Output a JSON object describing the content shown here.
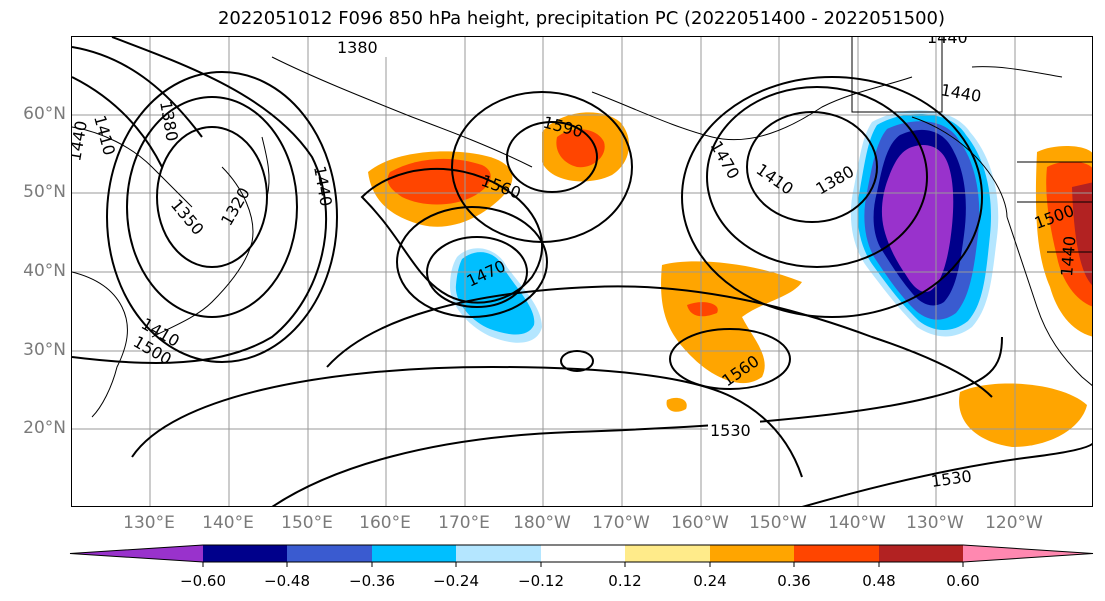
{
  "title": "2022051012 F096 850 hPa height, precipitation PC (2022051400 - 2022051500)",
  "latitude_labels": [
    "60°N",
    "50°N",
    "40°N",
    "30°N",
    "20°N"
  ],
  "longitude_labels": [
    "130°E",
    "140°E",
    "150°E",
    "160°E",
    "170°E",
    "180°W",
    "170°W",
    "160°W",
    "150°W",
    "140°W",
    "130°W",
    "120°W"
  ],
  "contour_labels": [
    "1380",
    "1440",
    "1410",
    "1380",
    "1440",
    "1350",
    "1320",
    "1440",
    "1410",
    "1590",
    "1560",
    "1470",
    "1470",
    "1410",
    "1380",
    "1440",
    "1440",
    "1500",
    "1530",
    "1560",
    "1530",
    "1500"
  ],
  "colorbar": {
    "tick_labels": [
      "−0.60",
      "−0.48",
      "−0.36",
      "−0.24",
      "−0.12",
      "0.12",
      "0.24",
      "0.36",
      "0.48",
      "0.60"
    ],
    "colors": [
      "#9932CC",
      "#00008B",
      "#3A5BD0",
      "#00BFFF",
      "#B4E6FF",
      "#FFFFFF",
      "#FFEB8A",
      "#FFA500",
      "#FF4500",
      "#B22222",
      "#FF88B0"
    ]
  },
  "colors": {
    "axis_label": "#7a7a7a",
    "contour": "#000000",
    "grid": "#999999"
  }
}
